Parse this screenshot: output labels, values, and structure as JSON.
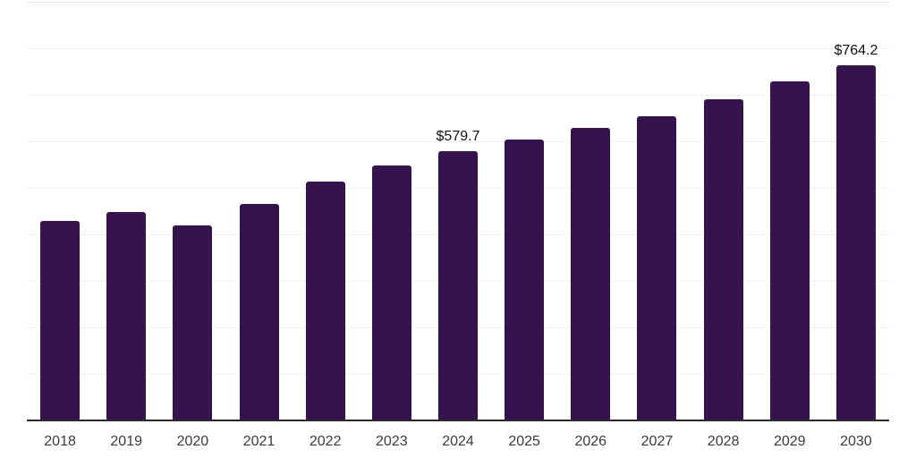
{
  "chart_data": {
    "type": "bar",
    "title": "",
    "xlabel": "",
    "ylabel": "",
    "categories": [
      "2018",
      "2019",
      "2020",
      "2021",
      "2022",
      "2023",
      "2024",
      "2025",
      "2026",
      "2027",
      "2028",
      "2029",
      "2030"
    ],
    "values": [
      429,
      449,
      419,
      466,
      514,
      549,
      579.7,
      604,
      628,
      654,
      690,
      728,
      764.2
    ],
    "point_labels": [
      "",
      "",
      "",
      "",
      "",
      "",
      "$579.7",
      "",
      "",
      "",
      "",
      "",
      "$764.2"
    ],
    "ylim": [
      0,
      900
    ],
    "grid_step": 100,
    "grid": "horizontal-only",
    "legend": "none",
    "y_axis_labels": "none",
    "colors": {
      "bar": "#35134d",
      "grid": "#f3f3f3",
      "grid_top": "#e8e8e8",
      "axis": "#2b2b2b",
      "tick_label": "#3a3a3a",
      "data_label": "#111111",
      "background": "#ffffff"
    }
  }
}
